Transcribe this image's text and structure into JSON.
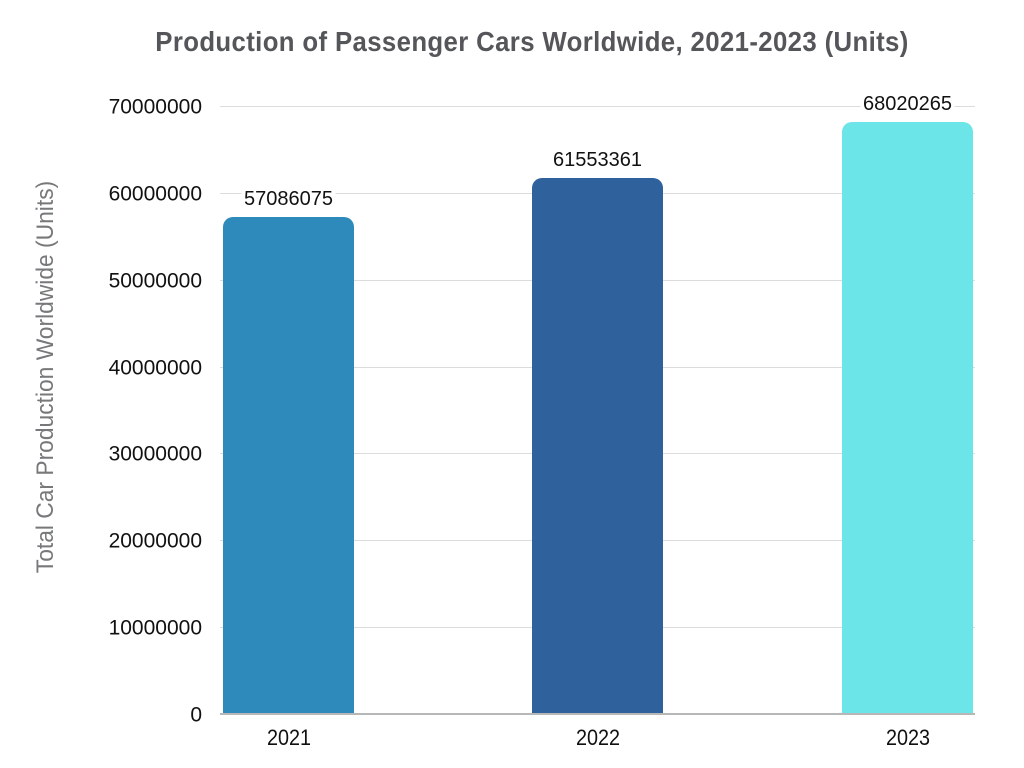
{
  "colors": {
    "background": "#FFFFFF",
    "title": "#55565A",
    "axis_title": "#76787A",
    "tick_labels": "#111111",
    "value_labels": "#111111",
    "gridline": "#DCDCDC",
    "baseline": "#B7B7B7"
  },
  "chart_data": {
    "type": "bar",
    "title": "Production of Passenger Cars Worldwide, 2021-2023 (Units)",
    "xlabel": "",
    "ylabel": "Total Car Production Worldwide (Units)",
    "categories": [
      "2021",
      "2022",
      "2023"
    ],
    "values": [
      57086075,
      61553361,
      68020265
    ],
    "value_labels": [
      "57086075",
      "61553361",
      "68020265"
    ],
    "bar_colors": [
      "#2D8ABA",
      "#2F619C",
      "#6CE5E9"
    ],
    "ylim": [
      0,
      70000000
    ],
    "ytick_step": 10000000,
    "yticks": [
      0,
      10000000,
      20000000,
      30000000,
      40000000,
      50000000,
      60000000,
      70000000
    ],
    "ytick_labels": [
      "0",
      "10000000",
      "20000000",
      "30000000",
      "40000000",
      "50000000",
      "60000000",
      "70000000"
    ],
    "grid": "horizontal",
    "legend": "none"
  }
}
